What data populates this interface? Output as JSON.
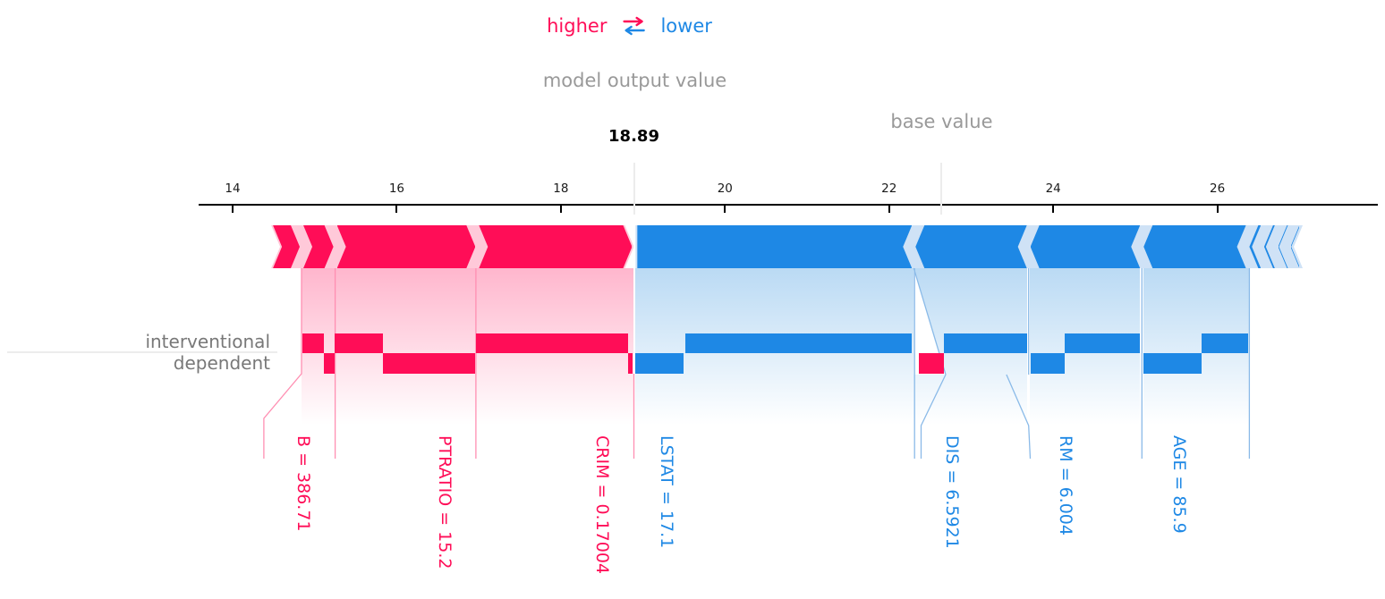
{
  "header": {
    "higher_label": "higher",
    "lower_label": "lower",
    "swap_icon": "left-right-swap-arrows",
    "model_output_label": "model output value",
    "model_output_value": "18.89",
    "base_value_label": "base value"
  },
  "rows": {
    "top_label": "interventional",
    "bottom_label": "dependent"
  },
  "colors": {
    "red": "#ff0d57",
    "blue": "#1e88e5",
    "red_pale": "#ffc9d9",
    "blue_pale": "#cfe2f6",
    "red_grad": "#ffb6cd",
    "blue_grad": "#badaf4",
    "red_line": "#ff8fb2",
    "blue_line": "#8abae8",
    "gray_text": "#999999",
    "row_label_gray": "#787878",
    "ref_line_gray": "#ececec",
    "tick_text": "#1a1a1a"
  },
  "chart_data": {
    "type": "force-plot-comparison",
    "model_output": 18.89,
    "base_value": 22.64,
    "x_ticks": [
      14,
      16,
      18,
      20,
      22,
      24,
      26
    ],
    "x_range": [
      13.55,
      27.95
    ],
    "band": {
      "left_tail_segment": [
        14.47,
        14.84
      ],
      "right_cluster_segments": [
        [
          26.39,
          26.53
        ],
        [
          26.57,
          26.7
        ],
        [
          26.74,
          26.86
        ],
        [
          26.9,
          27.0
        ]
      ],
      "red_underlay": [
        14.47,
        18.89
      ],
      "blue_underlay": [
        18.91,
        27.04
      ]
    },
    "flow_columns": [
      {
        "side": "higher",
        "span": [
          14.84,
          18.89
        ]
      },
      {
        "side": "lower",
        "span": [
          18.91,
          23.68
        ]
      },
      {
        "side": "lower",
        "span": [
          23.71,
          25.06
        ]
      },
      {
        "side": "lower",
        "span": [
          25.1,
          26.39
        ]
      }
    ],
    "features": [
      {
        "name": "B",
        "value": "386.71",
        "label": "B = 386.71",
        "side": "higher",
        "segment": [
          14.84,
          15.25
        ],
        "interventional_bar": [
          14.85,
          15.11
        ],
        "dependent_bar": [
          15.11,
          15.24
        ],
        "label_pos": 14.86
      },
      {
        "name": "PTRATIO",
        "value": "15.2",
        "label": "PTRATIO = 15.2",
        "side": "higher",
        "segment": [
          15.25,
          16.98
        ],
        "interventional_bar": [
          15.24,
          15.83
        ],
        "dependent_bar": [
          15.83,
          16.96
        ],
        "label_pos": 16.58
      },
      {
        "name": "CRIM",
        "value": "0.17004",
        "label": "CRIM = 0.17004",
        "side": "higher",
        "segment": [
          16.98,
          18.89
        ],
        "interventional_bar": [
          16.97,
          18.82
        ],
        "dependent_bar": [
          18.82,
          18.87
        ],
        "label_pos": 18.5
      },
      {
        "name": "LSTAT",
        "value": "17.1",
        "label": "LSTAT = 17.1",
        "side": "lower",
        "flat_left": true,
        "segment": [
          18.91,
          22.3
        ],
        "interventional_bar": [
          19.52,
          22.28
        ],
        "dependent_bar": [
          18.91,
          19.5
        ],
        "label_pos": 19.29
      },
      {
        "name": "DIS",
        "value": "6.5921",
        "label": "DIS = 6.5921",
        "side": "lower",
        "dependent_bar_color": "red",
        "segment": [
          22.3,
          23.7
        ],
        "interventional_bar": [
          22.67,
          23.68
        ],
        "dependent_bar": [
          22.36,
          22.67
        ],
        "label_pos": 22.77
      },
      {
        "name": "RM",
        "value": "6.004",
        "label": "RM = 6.004",
        "side": "lower",
        "segment": [
          23.7,
          25.08
        ],
        "interventional_bar": [
          24.14,
          25.06
        ],
        "dependent_bar": [
          23.73,
          24.14
        ],
        "label_pos": 24.15
      },
      {
        "name": "AGE",
        "value": "85.9",
        "label": "AGE = 85.9",
        "side": "lower",
        "segment": [
          25.08,
          26.37
        ],
        "interventional_bar": [
          25.81,
          26.37
        ],
        "dependent_bar": [
          25.1,
          25.81
        ],
        "label_pos": 25.53
      }
    ],
    "approx_shap_values": {
      "interventional": {
        "B": 0.26,
        "PTRATIO": 0.59,
        "CRIM": 1.85,
        "LSTAT": -2.76,
        "DIS": -1.01,
        "RM": -0.92,
        "AGE": -0.56
      },
      "dependent": {
        "B": 0.13,
        "PTRATIO": 1.13,
        "CRIM": 0.05,
        "LSTAT": -0.59,
        "DIS": 0.31,
        "RM": -0.41,
        "AGE": -0.71
      }
    }
  }
}
